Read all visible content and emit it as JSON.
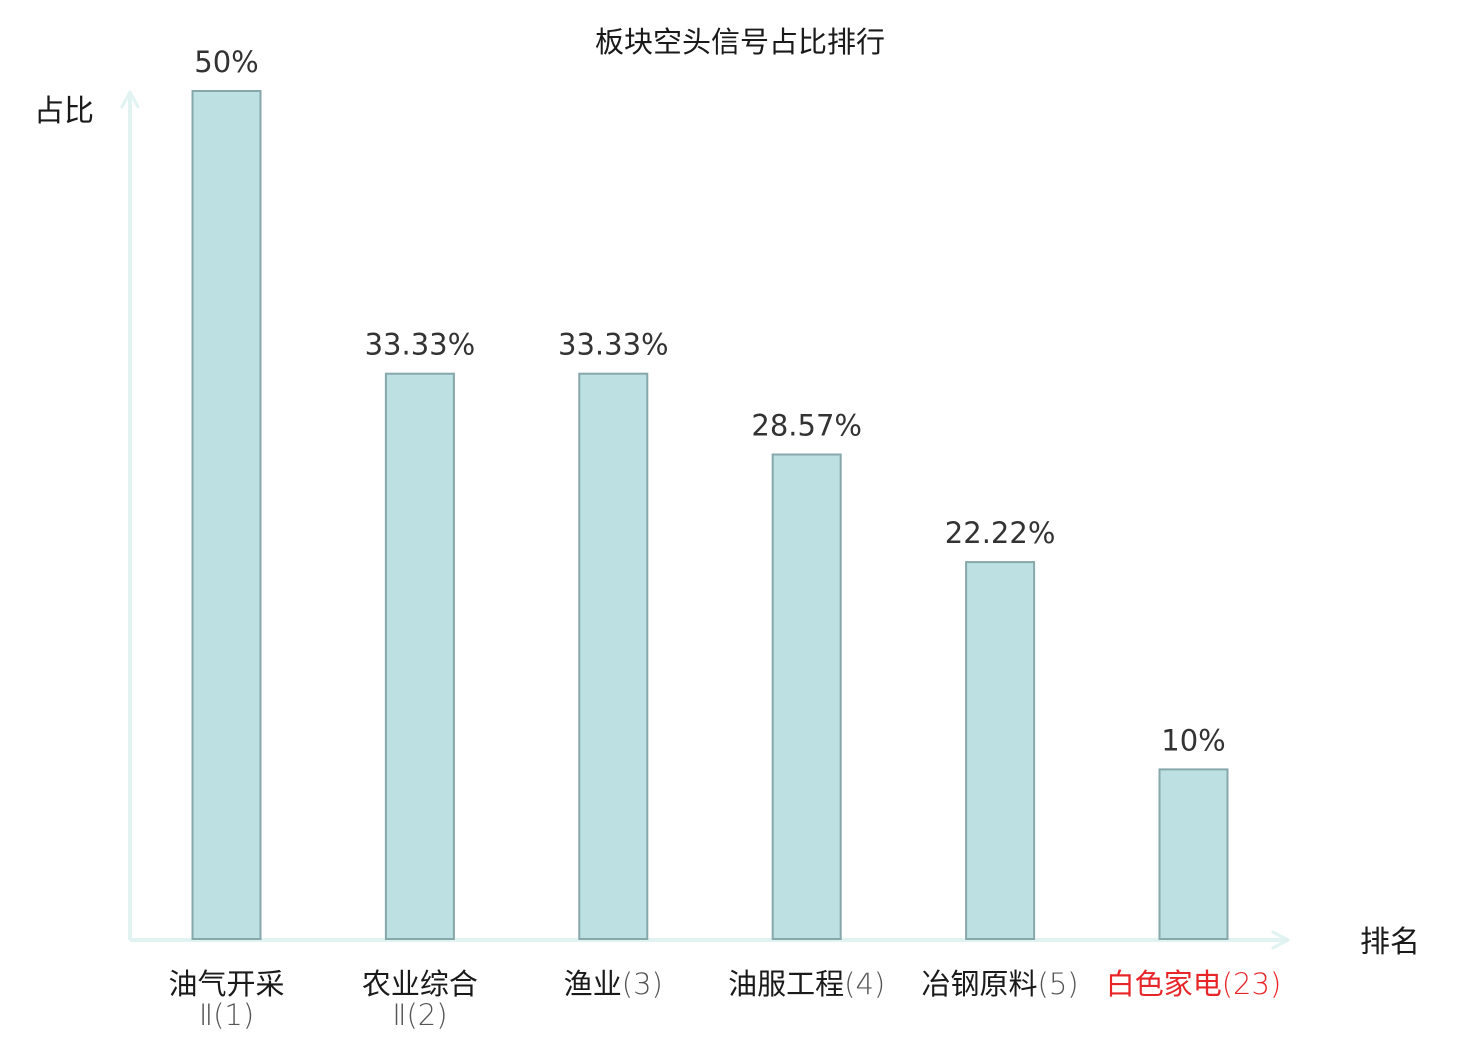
{
  "chart_data": {
    "type": "bar",
    "title": "板块空头信号占比排行",
    "ylabel": "占比",
    "xlabel": "排名",
    "ylim": [
      0,
      50
    ],
    "grid": false,
    "categories": [
      {
        "name": "油气开采",
        "rank": "Ⅱ(1)",
        "highlight": false
      },
      {
        "name": "农业综合",
        "rank": "Ⅱ(2)",
        "highlight": false
      },
      {
        "name": "渔业",
        "rank": "(3)",
        "highlight": false
      },
      {
        "name": "油服工程",
        "rank": "(4)",
        "highlight": false
      },
      {
        "name": "冶钢原料",
        "rank": "(5)",
        "highlight": false
      },
      {
        "name": "白色家电",
        "rank": "(23)",
        "highlight": true
      }
    ],
    "values": [
      50,
      33.33,
      33.33,
      28.57,
      22.22,
      10
    ],
    "value_labels": [
      "50%",
      "33.33%",
      "33.33%",
      "28.57%",
      "22.22%",
      "10%"
    ],
    "colors": {
      "bar_fill": "#bde0e3",
      "bar_stroke": "#86a8ab",
      "axis": "#e0f3f1",
      "text": "#1a1a1a",
      "value_text": "#333333",
      "rank_text": "#555555",
      "highlight": "#e8262a"
    }
  }
}
